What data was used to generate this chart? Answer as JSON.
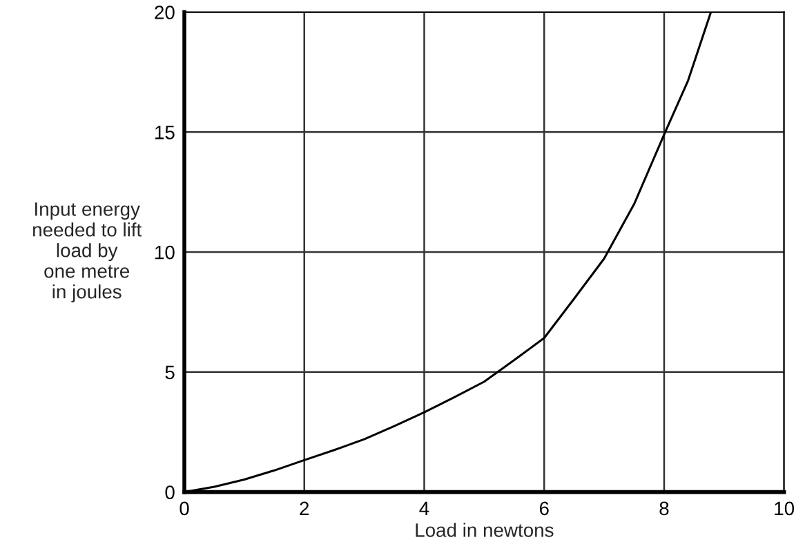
{
  "chart_data": {
    "type": "line",
    "xlabel": "Load in newtons",
    "ylabel": "Input energy\nneeded to lift\nload by\none metre\nin joules",
    "x": [
      0,
      0.5,
      1,
      1.5,
      2,
      2.5,
      3,
      3.5,
      4,
      4.5,
      5,
      5.5,
      6,
      6.5,
      7,
      7.5,
      8,
      8.4,
      8.78
    ],
    "series": [
      {
        "color": "#000000",
        "values": [
          0,
          0.22,
          0.52,
          0.9,
          1.33,
          1.75,
          2.2,
          2.75,
          3.32,
          3.95,
          4.6,
          5.5,
          6.42,
          8.06,
          9.73,
          12.0,
          14.9,
          17.15,
          20
        ]
      }
    ],
    "xlim": [
      0,
      10
    ],
    "ylim": [
      0,
      20
    ],
    "xticks": [
      0,
      2,
      4,
      6,
      8,
      10
    ],
    "yticks": [
      0,
      5,
      10,
      15,
      20
    ],
    "grid": true,
    "marker": "none",
    "line_style": "solid"
  }
}
